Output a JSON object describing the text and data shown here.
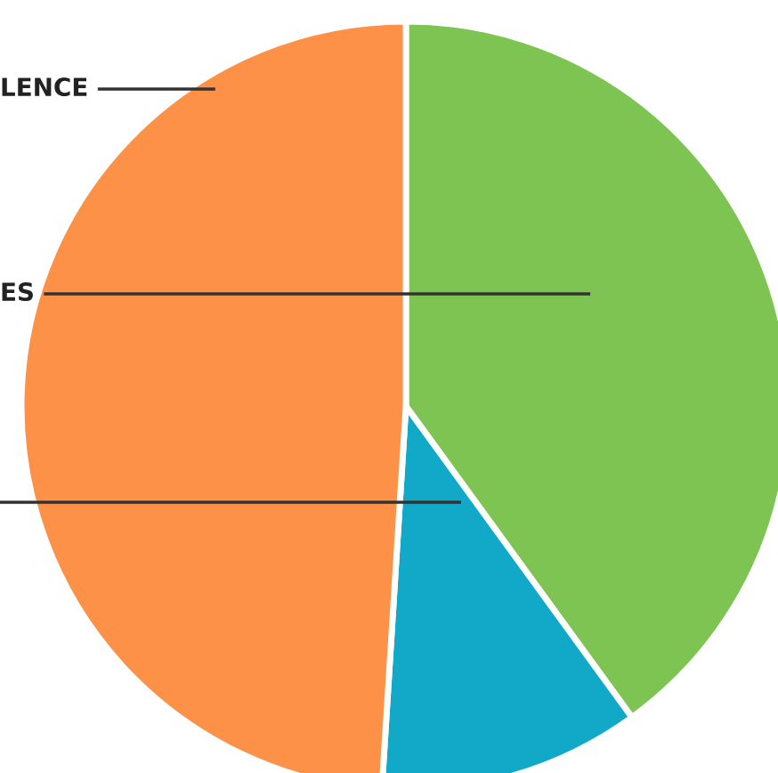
{
  "chart_data": {
    "type": "pie",
    "categories": [
      "ES",
      null,
      "LENCE"
    ],
    "values": [
      40,
      11,
      49
    ],
    "colors": [
      "#7dc452",
      "#12a9c9",
      "#fc9147"
    ]
  }
}
